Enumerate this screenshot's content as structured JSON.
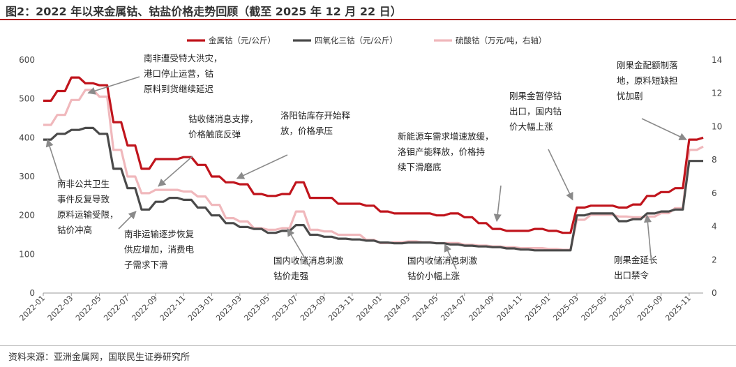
{
  "title": "图2：2022 年以来金属钴、钴盐价格走势回顾（截至 2025 年 12 月 22 日）",
  "source": "资料来源：亚洲金属网，国联民生证券研究所",
  "colors": {
    "metal": "#c0141c",
    "oxide": "#4a4a4a",
    "sulfate": "#f0b8bc",
    "title_rule": "#b0151c"
  },
  "chart_data": {
    "type": "line",
    "title": "2022 年以来金属钴、钴盐价格走势回顾",
    "x_dates": [
      "2022-01",
      "2022-02",
      "2022-03",
      "2022-04",
      "2022-05",
      "2022-06",
      "2022-07",
      "2022-08",
      "2022-09",
      "2022-10",
      "2022-11",
      "2022-12",
      "2023-01",
      "2023-02",
      "2023-03",
      "2023-04",
      "2023-05",
      "2023-06",
      "2023-07",
      "2023-08",
      "2023-09",
      "2023-10",
      "2023-11",
      "2023-12",
      "2024-01",
      "2024-02",
      "2024-03",
      "2024-04",
      "2024-05",
      "2024-06",
      "2024-07",
      "2024-08",
      "2024-09",
      "2024-10",
      "2024-11",
      "2024-12",
      "2025-01",
      "2025-02",
      "2025-03",
      "2025-04",
      "2025-05",
      "2025-06",
      "2025-07",
      "2025-08",
      "2025-09",
      "2025-10",
      "2025-11",
      "2025-12"
    ],
    "x_ticks": [
      "2022-01",
      "2022-03",
      "2022-05",
      "2022-07",
      "2022-09",
      "2022-11",
      "2023-01",
      "2023-03",
      "2023-05",
      "2023-07",
      "2023-09",
      "2023-11",
      "2024-01",
      "2024-03",
      "2024-05",
      "2024-07",
      "2024-09",
      "2024-11",
      "2025-01",
      "2025-03",
      "2025-05",
      "2025-07",
      "2025-09",
      "2025-11"
    ],
    "y_left": {
      "min": 0,
      "max": 600,
      "ticks": [
        0,
        100,
        200,
        300,
        400,
        500,
        600
      ]
    },
    "y_right": {
      "min": 0,
      "max": 14,
      "ticks": [
        0,
        2,
        4,
        6,
        8,
        10,
        12,
        14
      ]
    },
    "series": [
      {
        "name": "金属钴（元/公斤）",
        "axis": "left",
        "color": "#c0141c",
        "width": 3.2,
        "values": [
          495,
          520,
          555,
          540,
          535,
          440,
          380,
          320,
          345,
          345,
          350,
          330,
          300,
          285,
          280,
          255,
          250,
          255,
          285,
          245,
          245,
          230,
          230,
          225,
          210,
          205,
          205,
          205,
          200,
          205,
          195,
          180,
          165,
          160,
          160,
          165,
          160,
          155,
          220,
          225,
          225,
          220,
          228,
          250,
          260,
          270,
          395,
          400
        ]
      },
      {
        "name": "四氧化三钴（元/公斤）",
        "axis": "left",
        "color": "#4a4a4a",
        "width": 3.2,
        "values": [
          395,
          410,
          420,
          425,
          410,
          320,
          270,
          215,
          235,
          245,
          240,
          220,
          200,
          180,
          170,
          165,
          155,
          160,
          175,
          150,
          145,
          140,
          138,
          135,
          130,
          128,
          130,
          130,
          128,
          125,
          122,
          120,
          118,
          115,
          112,
          110,
          110,
          110,
          200,
          205,
          205,
          185,
          190,
          205,
          210,
          215,
          340,
          340
        ]
      },
      {
        "name": "硫酸钴（万元/吨，右轴）",
        "axis": "right",
        "color": "#f0b8bc",
        "width": 3.2,
        "values": [
          10.1,
          10.7,
          11.6,
          12.2,
          11.8,
          8.6,
          7.0,
          6.0,
          6.2,
          6.2,
          6.1,
          5.8,
          5.3,
          4.5,
          4.3,
          3.9,
          3.8,
          3.9,
          4.9,
          3.8,
          3.7,
          3.5,
          3.5,
          3.2,
          3.0,
          3.05,
          3.1,
          3.05,
          3.0,
          3.0,
          2.9,
          2.85,
          2.8,
          2.75,
          2.7,
          2.7,
          2.65,
          2.6,
          4.4,
          4.7,
          4.7,
          4.6,
          4.55,
          4.6,
          4.8,
          5.1,
          8.6,
          8.8
        ]
      }
    ],
    "legend_position": "top-center",
    "annotations": [
      {
        "lines": [
          "南非遭受特大洪灾，",
          "港口停止运营，钴",
          "原料到货继续延迟"
        ],
        "month": 3.2,
        "value": 515,
        "axis": "left"
      },
      {
        "lines": [
          "钴收储消息支撑，",
          "价格触底反弹"
        ],
        "month": 8.2,
        "value": 275,
        "axis": "left"
      },
      {
        "lines": [
          "洛阳钴库存开始释",
          "放，价格承压"
        ],
        "month": 13.8,
        "value": 295,
        "axis": "left"
      },
      {
        "lines": [
          "新能源车需求增速放缓，",
          "洛钼产能释放，价格持",
          "续下滑磨底"
        ],
        "month": 32.3,
        "value": 185,
        "axis": "left"
      },
      {
        "lines": [
          "刚果金暂停钴",
          "出口，国内钴",
          "价大幅上涨"
        ],
        "month": 37.7,
        "value": 240,
        "axis": "left"
      },
      {
        "lines": [
          "刚果金配额制落",
          "地，原料短缺担",
          "忧加剧"
        ],
        "month": 45.8,
        "value": 395,
        "axis": "left"
      },
      {
        "lines": [
          "南非公共卫生",
          "事件反复导致",
          "原料运输受限，",
          "钴价冲高"
        ],
        "month": 0.3,
        "value": 395,
        "axis": "left"
      },
      {
        "lines": [
          "南非运输逐步恢复",
          "供应增加，消费电",
          "子需求下滑"
        ],
        "month": 6.6,
        "value": 210,
        "axis": "left"
      },
      {
        "lines": [
          "国内收储消息刺激",
          "钴价走强"
        ],
        "month": 17.4,
        "value": 165,
        "axis": "left"
      },
      {
        "lines": [
          "国内收储消息刺激",
          "钴价小幅上涨"
        ],
        "month": 28.6,
        "value": 125,
        "axis": "left"
      },
      {
        "lines": [
          "刚果金延长",
          "出口禁令"
        ],
        "month": 43.0,
        "value": 200,
        "axis": "left"
      }
    ]
  }
}
